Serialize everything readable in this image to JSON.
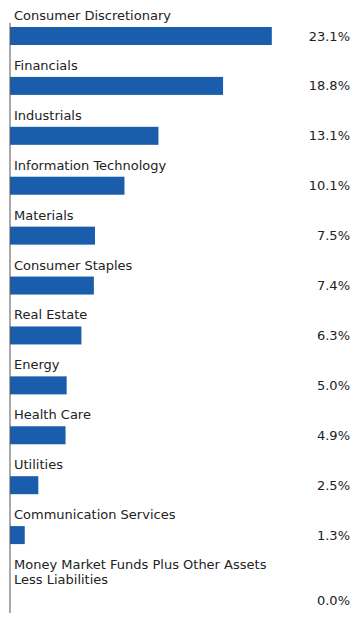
{
  "chart_data": {
    "type": "bar",
    "orientation": "horizontal",
    "categories": [
      "Consumer Discretionary",
      "Financials",
      "Industrials",
      "Information Technology",
      "Materials",
      "Consumer Staples",
      "Real Estate",
      "Energy",
      "Health Care",
      "Utilities",
      "Communication Services",
      "Money Market Funds Plus Other Assets\nLess Liabilities"
    ],
    "values": [
      23.1,
      18.8,
      13.1,
      10.1,
      7.5,
      7.4,
      6.3,
      5.0,
      4.9,
      2.5,
      1.3,
      0.0
    ],
    "value_labels": [
      "23.1%",
      "18.8%",
      "13.1%",
      "10.1%",
      "7.5%",
      "7.4%",
      "6.3%",
      "5.0%",
      "4.9%",
      "2.5%",
      "1.3%",
      "0.0%"
    ],
    "color": "#1A5DAD",
    "xlim": [
      0,
      30
    ],
    "data_labels": true
  }
}
